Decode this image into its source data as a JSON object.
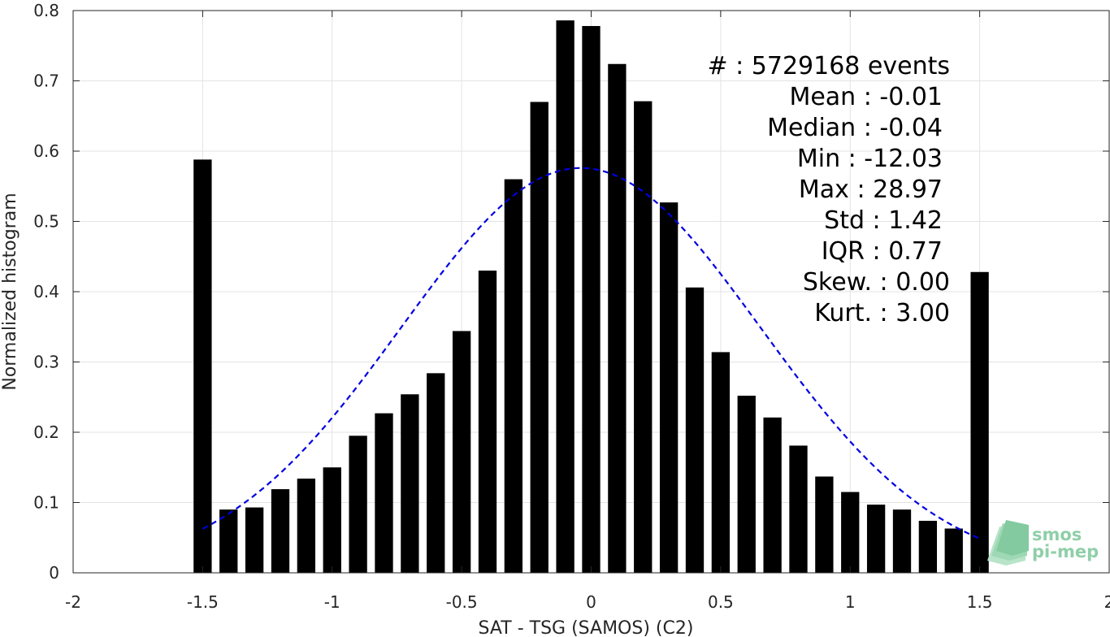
{
  "chart_data": {
    "type": "bar",
    "xlabel": "SAT - TSG (SAMOS) (C2)",
    "ylabel": "Normalized histogram",
    "xlim": [
      -2,
      2
    ],
    "ylim": [
      0,
      0.8
    ],
    "x_ticks": [
      "-2",
      "-1.5",
      "-1",
      "-0.5",
      "0",
      "0.5",
      "1",
      "1.5",
      "2"
    ],
    "y_ticks": [
      "0",
      "0.1",
      "0.2",
      "0.3",
      "0.4",
      "0.5",
      "0.6",
      "0.7",
      "0.8"
    ],
    "grid": true,
    "bar_width": 0.07,
    "bars": [
      {
        "x": -1.5,
        "y": 0.588
      },
      {
        "x": -1.4,
        "y": 0.09
      },
      {
        "x": -1.3,
        "y": 0.093
      },
      {
        "x": -1.2,
        "y": 0.119
      },
      {
        "x": -1.1,
        "y": 0.134
      },
      {
        "x": -1.0,
        "y": 0.15
      },
      {
        "x": -0.9,
        "y": 0.195
      },
      {
        "x": -0.8,
        "y": 0.227
      },
      {
        "x": -0.7,
        "y": 0.254
      },
      {
        "x": -0.6,
        "y": 0.284
      },
      {
        "x": -0.5,
        "y": 0.344
      },
      {
        "x": -0.4,
        "y": 0.43
      },
      {
        "x": -0.3,
        "y": 0.56
      },
      {
        "x": -0.2,
        "y": 0.67
      },
      {
        "x": -0.1,
        "y": 0.786
      },
      {
        "x": 0.0,
        "y": 0.778
      },
      {
        "x": 0.1,
        "y": 0.724
      },
      {
        "x": 0.2,
        "y": 0.671
      },
      {
        "x": 0.3,
        "y": 0.527
      },
      {
        "x": 0.4,
        "y": 0.406
      },
      {
        "x": 0.5,
        "y": 0.314
      },
      {
        "x": 0.6,
        "y": 0.252
      },
      {
        "x": 0.7,
        "y": 0.221
      },
      {
        "x": 0.8,
        "y": 0.181
      },
      {
        "x": 0.9,
        "y": 0.137
      },
      {
        "x": 1.0,
        "y": 0.115
      },
      {
        "x": 1.1,
        "y": 0.097
      },
      {
        "x": 1.2,
        "y": 0.09
      },
      {
        "x": 1.3,
        "y": 0.074
      },
      {
        "x": 1.4,
        "y": 0.063
      },
      {
        "x": 1.5,
        "y": 0.428
      }
    ],
    "fit_curve": {
      "style": "dashed",
      "color": "#0000e0",
      "mean": -0.04,
      "std": 0.693,
      "peak": 0.576,
      "x_range": [
        -1.5,
        1.5
      ]
    },
    "bar_color": "#000000"
  },
  "stats": [
    {
      "text": "#  : 5729168 events"
    },
    {
      "text": "Mean : -0.01"
    },
    {
      "text": "Median : -0.04"
    },
    {
      "text": "Min : -12.03"
    },
    {
      "text": "Max : 28.97"
    },
    {
      "text": "Std : 1.42"
    },
    {
      "text": "IQR : 0.77"
    },
    {
      "text": "Skew. : 0.00"
    },
    {
      "text": "Kurt. : 3.00"
    }
  ],
  "logo": {
    "line1": "smos",
    "line2": "pi-mep"
  }
}
